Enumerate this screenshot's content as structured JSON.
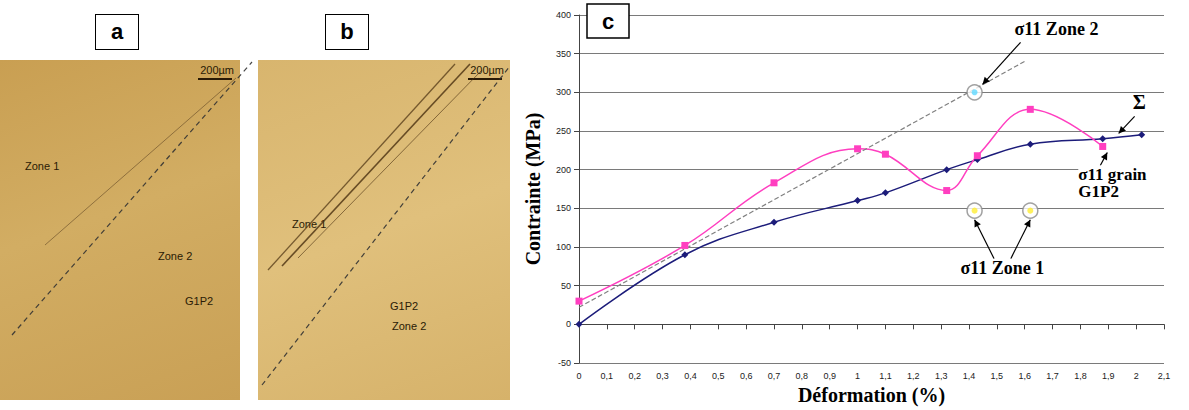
{
  "panels": [
    {
      "letter": "a",
      "scale": "200µm",
      "labels": [
        "Zone 1",
        "Zone 2",
        "G1P2"
      ]
    },
    {
      "letter": "b",
      "scale": "200µm",
      "labels": [
        "Zone 1",
        "G1P2",
        "Zone 2"
      ]
    }
  ],
  "chart_data": {
    "type": "line",
    "letter": "c",
    "xlabel": "Déformation (%)",
    "ylabel": "Contrainte (MPa)",
    "xlim": [
      0,
      2.1
    ],
    "xticks": [
      0,
      {
        "value": 0.1,
        "label": "0,1"
      },
      {
        "value": 0.2,
        "label": "0,2"
      },
      {
        "value": 0.3,
        "label": "0,3"
      },
      {
        "value": 0.4,
        "label": "0,4"
      },
      {
        "value": 0.5,
        "label": "0,5"
      },
      {
        "value": 0.6,
        "label": "0,6"
      },
      {
        "value": 0.7,
        "label": "0,7"
      },
      {
        "value": 0.8,
        "label": "0,8"
      },
      {
        "value": 0.9,
        "label": "0,9"
      },
      1,
      {
        "value": 1.1,
        "label": "1,1"
      },
      {
        "value": 1.2,
        "label": "1,2"
      },
      {
        "value": 1.3,
        "label": "1,3"
      },
      {
        "value": 1.4,
        "label": "1,4"
      },
      {
        "value": 1.5,
        "label": "1,5"
      },
      {
        "value": 1.6,
        "label": "1,6"
      },
      {
        "value": 1.7,
        "label": "1,7"
      },
      {
        "value": 1.8,
        "label": "1,8"
      },
      {
        "value": 1.9,
        "label": "1,9"
      },
      2,
      {
        "value": 2.1,
        "label": "2,1"
      }
    ],
    "ylim": [
      -50,
      400
    ],
    "yticks": [
      -50,
      0,
      50,
      100,
      150,
      200,
      250,
      300,
      350,
      400
    ],
    "grid": true,
    "series": [
      {
        "name": "Σ",
        "type": "line",
        "color": "#1c1c7a",
        "marker": "diamond",
        "line_style": "solid",
        "x": [
          0,
          0.38,
          0.7,
          1.0,
          1.1,
          1.32,
          1.43,
          1.62,
          1.88,
          2.02
        ],
        "values": [
          0,
          90,
          132,
          160,
          170,
          200,
          213,
          233,
          240,
          245
        ],
        "arrow_to": [
          [
            1.93,
            243
          ]
        ]
      },
      {
        "name": "σ11 grain G1P2",
        "type": "line",
        "color": "#ff3fc0",
        "marker": "square",
        "line_style": "solid",
        "x": [
          0,
          0.38,
          0.7,
          1.0,
          1.1,
          1.32,
          1.43,
          1.62,
          1.88
        ],
        "values": [
          30,
          102,
          183,
          227,
          220,
          173,
          218,
          278,
          230
        ],
        "arrow_to": [
          [
            1.9,
            226
          ]
        ]
      },
      {
        "name": "σ11 Zone 2",
        "type": "scatter",
        "color": "#5fd8ff",
        "marker": "circle",
        "x": [
          1.42
        ],
        "values": [
          300
        ],
        "arrow_to": [
          [
            1.42,
            300
          ]
        ]
      },
      {
        "name": "σ11 Zone 1",
        "type": "scatter",
        "color": "#ffee33",
        "marker": "circle",
        "x": [
          1.42,
          1.62
        ],
        "values": [
          147,
          147
        ],
        "arrow_to": [
          [
            1.42,
            147
          ],
          [
            1.62,
            147
          ]
        ]
      },
      {
        "type": "line",
        "color": "#808080",
        "marker": "none",
        "line_style": "dashed",
        "x": [
          0,
          1.6
        ],
        "values": [
          22,
          340
        ]
      }
    ]
  }
}
